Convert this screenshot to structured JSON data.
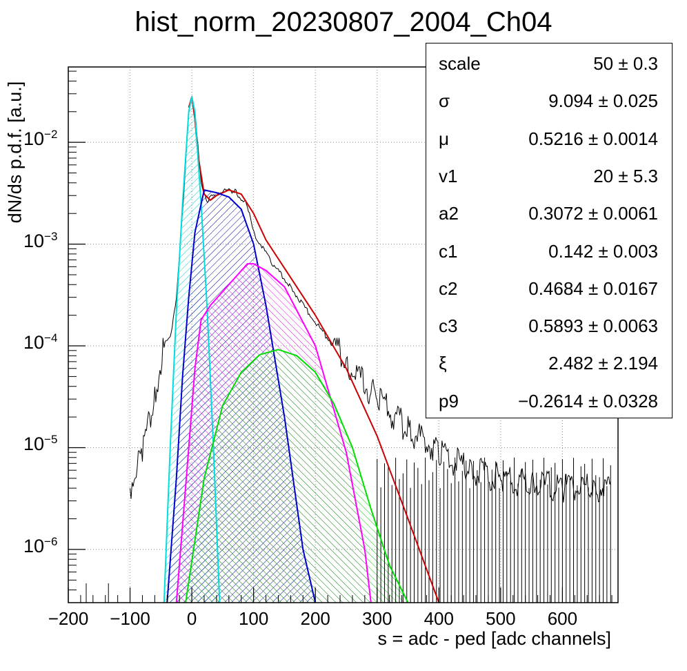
{
  "chart_data": {
    "type": "line",
    "title": "hist_norm_20230807_2004_Ch04",
    "xlabel": "s = adc - ped [adc channels]",
    "ylabel": "dN/ds p.d.f. [a.u.]",
    "xlim": [
      -200,
      690
    ],
    "ylim": [
      3e-07,
      0.055
    ],
    "yscale": "log",
    "grid": true,
    "xticks": [
      "−200",
      "−100",
      "0",
      "100",
      "200",
      "300",
      "400",
      "500",
      "600"
    ],
    "xtick_values": [
      -200,
      -100,
      0,
      100,
      200,
      300,
      400,
      500,
      600
    ],
    "yticks": [
      {
        "base": "10",
        "exp": "−2",
        "value": 0.01
      },
      {
        "base": "10",
        "exp": "−3",
        "value": 0.001
      },
      {
        "base": "10",
        "exp": "−4",
        "value": 0.0001
      },
      {
        "base": "10",
        "exp": "−5",
        "value": 1e-05
      },
      {
        "base": "10",
        "exp": "−6",
        "value": 1e-06
      }
    ],
    "series": [
      {
        "color": "#000000",
        "style": "histogram",
        "x": [
          -100,
          -80,
          -60,
          -45,
          -35,
          -25,
          -15,
          -5,
          0,
          5,
          15,
          25,
          35,
          50,
          70,
          90,
          100,
          130,
          160,
          200,
          250,
          300,
          350,
          400,
          450,
          500,
          550,
          600,
          650,
          680
        ],
        "y": [
          4e-06,
          1e-05,
          3e-05,
          0.0001,
          0.00012,
          0.0003,
          0.002,
          0.02,
          0.028,
          0.02,
          0.004,
          0.0027,
          0.003,
          0.0034,
          0.0033,
          0.0024,
          0.0013,
          0.00065,
          0.00038,
          0.00017,
          7e-05,
          3e-05,
          1.5e-05,
          9e-06,
          6e-06,
          5e-06,
          4.5e-06,
          4e-06,
          4e-06,
          4e-06
        ]
      },
      {
        "color": "#cc0000",
        "x": [
          -5,
          0,
          5,
          10,
          20,
          30,
          40,
          60,
          80,
          100,
          120,
          150,
          200,
          250,
          300,
          350,
          400
        ],
        "y": [
          0.022,
          0.028,
          0.017,
          0.0075,
          0.0031,
          0.0027,
          0.003,
          0.0034,
          0.0031,
          0.002,
          0.0011,
          0.00058,
          0.0002,
          6e-05,
          1.3e-05,
          2e-06,
          3e-07
        ]
      },
      {
        "color": "#00dddd",
        "x": [
          -45,
          -35,
          -25,
          -15,
          -5,
          0,
          5,
          15,
          25,
          35,
          45
        ],
        "y": [
          3e-07,
          1e-05,
          0.00022,
          0.0025,
          0.02,
          0.028,
          0.02,
          0.0025,
          0.00022,
          1e-05,
          3e-07
        ]
      },
      {
        "color": "#0000cc",
        "x": [
          -40,
          -25,
          -15,
          -5,
          5,
          20,
          40,
          60,
          80,
          100,
          120,
          150,
          180,
          200
        ],
        "y": [
          3e-07,
          5e-06,
          5e-05,
          0.0003,
          0.0013,
          0.0034,
          0.0032,
          0.0029,
          0.0022,
          0.001,
          0.00025,
          2e-05,
          1e-06,
          3e-07
        ]
      },
      {
        "color": "#ff00ff",
        "x": [
          -25,
          -5,
          5,
          15,
          30,
          60,
          90,
          100,
          120,
          150,
          200,
          250,
          280,
          290
        ],
        "y": [
          3e-07,
          1e-05,
          6e-05,
          0.00018,
          0.00025,
          0.0004,
          0.00064,
          0.00064,
          0.00055,
          0.00038,
          0.0001,
          9e-06,
          1e-06,
          3e-07
        ]
      },
      {
        "color": "#00dd00",
        "x": [
          -10,
          20,
          50,
          80,
          110,
          140,
          170,
          200,
          230,
          260,
          290,
          320,
          350
        ],
        "y": [
          3e-07,
          5e-06,
          2.6e-05,
          5.5e-05,
          8.2e-05,
          9.2e-05,
          8e-05,
          5.5e-05,
          2.7e-05,
          1e-05,
          2.5e-06,
          7e-07,
          3e-07
        ]
      }
    ]
  },
  "stats": [
    {
      "name": "scale",
      "value": "50 ± 0.3"
    },
    {
      "name": "σ",
      "value": "9.094 ± 0.025"
    },
    {
      "name": "μ",
      "value": "0.5216 ± 0.0014"
    },
    {
      "name": "v1",
      "value": "20 ± 5.3"
    },
    {
      "name": "a2",
      "value": "0.3072 ± 0.0061"
    },
    {
      "name": "c1",
      "value": "0.142 ± 0.003"
    },
    {
      "name": "c2",
      "value": "0.4684 ± 0.0167"
    },
    {
      "name": "c3",
      "value": "0.5893 ± 0.0063"
    },
    {
      "name": "ξ",
      "value": "2.482 ± 2.194"
    },
    {
      "name": "p9",
      "value": "−0.2614 ± 0.0328"
    }
  ]
}
